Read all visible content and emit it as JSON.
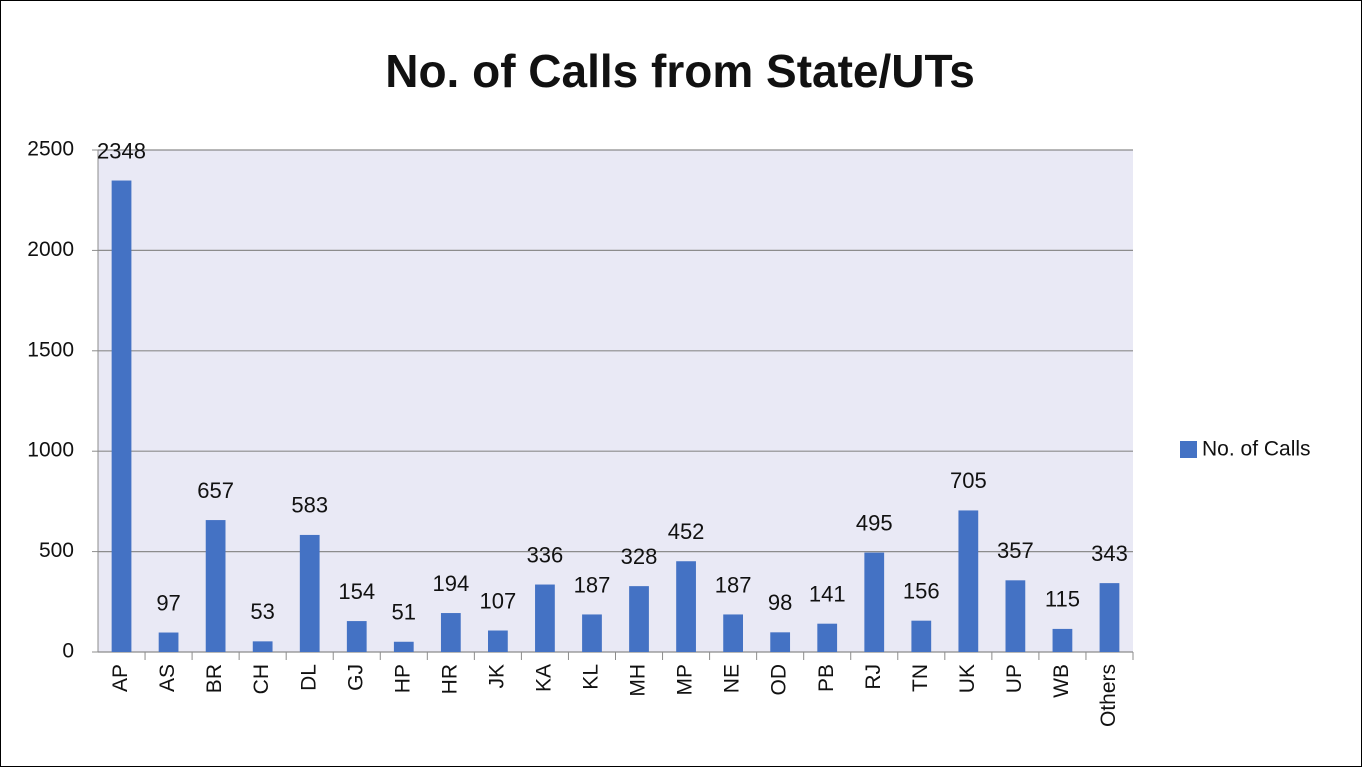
{
  "chart_data": {
    "type": "bar",
    "title": "No. of Calls from State/UTs",
    "categories": [
      "AP",
      "AS",
      "BR",
      "CH",
      "DL",
      "GJ",
      "HP",
      "HR",
      "JK",
      "KA",
      "KL",
      "MH",
      "MP",
      "NE",
      "OD",
      "PB",
      "RJ",
      "TN",
      "UK",
      "UP",
      "WB",
      "Others"
    ],
    "series": [
      {
        "name": "No. of Calls",
        "color": "#4472c4",
        "values": [
          2348,
          97,
          657,
          53,
          583,
          154,
          51,
          194,
          107,
          336,
          187,
          328,
          452,
          187,
          98,
          141,
          495,
          156,
          705,
          357,
          115,
          343
        ]
      }
    ],
    "ylim": [
      0,
      2500
    ],
    "yticks": [
      0,
      500,
      1000,
      1500,
      2000,
      2500
    ],
    "grid": true,
    "legend": "right"
  }
}
